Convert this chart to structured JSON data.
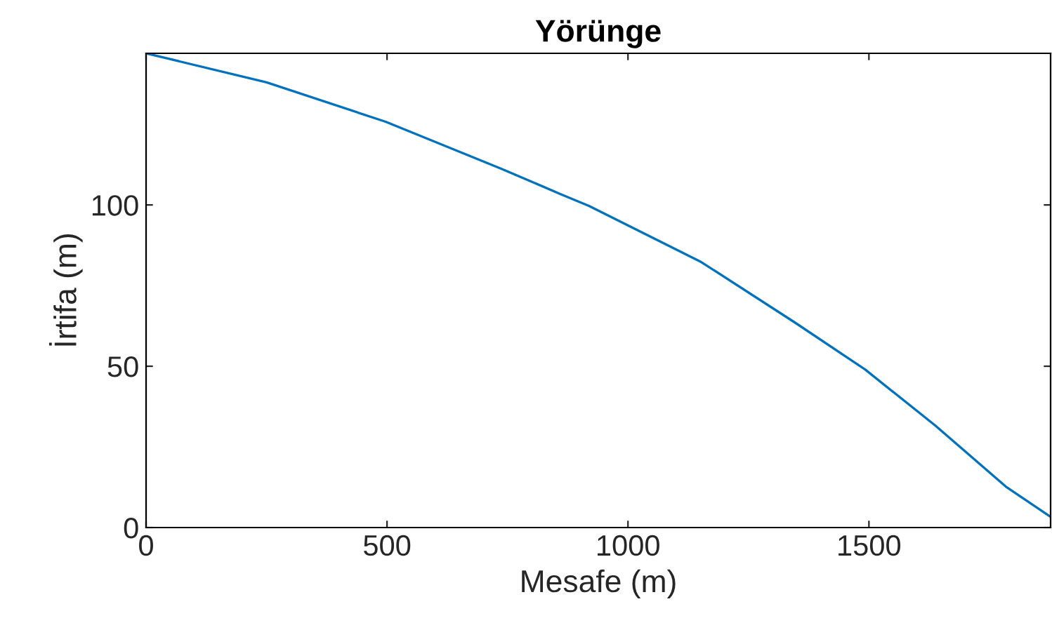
{
  "chart_data": {
    "type": "line",
    "title": "Yörünge",
    "xlabel": "Mesafe (m)",
    "ylabel": "İrtifa (m)",
    "x": [
      0,
      250,
      497,
      736,
      861,
      919,
      1152,
      1347,
      1492,
      1638,
      1784,
      1877
    ],
    "series": [
      {
        "color": "#0072bd",
        "values": [
          147,
          138,
          125.8,
          111.3,
          103.3,
          99.7,
          82.3,
          63.5,
          49,
          31.6,
          12.7,
          3.3
        ]
      }
    ],
    "xlim": [
      0,
      1877
    ],
    "ylim": [
      0,
      147
    ],
    "xticks": [
      0,
      500,
      1000,
      1500
    ],
    "yticks": [
      0,
      50,
      100
    ],
    "grid": false,
    "legend": false
  }
}
